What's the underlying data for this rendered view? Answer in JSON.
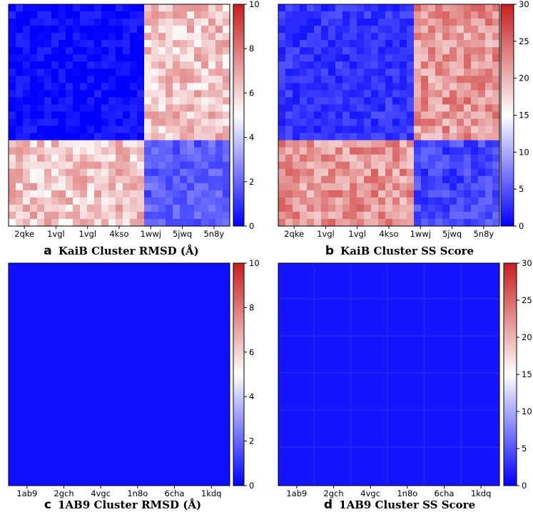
{
  "chart_data": [
    {
      "panel": "a",
      "type": "heatmap",
      "title": "KaiB Cluster RMSD (Å)",
      "x_tick_labels": [
        "2qke",
        "1vgl",
        "1vgl",
        "4kso",
        "1wwj",
        "5jwq",
        "5n8y"
      ],
      "colorbar": {
        "min": 0,
        "max": 10,
        "ticks": [
          0,
          2,
          4,
          6,
          8,
          10
        ],
        "colormap": "bwr"
      },
      "matrix_size": 31,
      "block_split_index": 19,
      "within_group_1_value": 0.2,
      "within_group_2_value": 1.8,
      "between_group_value": 6.3
    },
    {
      "panel": "b",
      "type": "heatmap",
      "title": "KaiB Cluster SS Score",
      "x_tick_labels": [
        "2qke",
        "1vgl",
        "1vgl",
        "4kso",
        "1wwj",
        "5jwq",
        "5n8y"
      ],
      "colorbar": {
        "min": 0,
        "max": 30,
        "ticks": [
          0,
          5,
          10,
          15,
          20,
          25,
          30
        ],
        "colormap": "bwr"
      },
      "matrix_size": 31,
      "block_split_index": 19,
      "within_group_1_value": 3,
      "within_group_2_value": 4,
      "between_group_value": 22
    },
    {
      "panel": "c",
      "type": "heatmap",
      "title": "1AB9 Cluster RMSD (Å)",
      "x_tick_labels": [
        "1ab9",
        "2gch",
        "4vgc",
        "1n8o",
        "6cha",
        "1kdq"
      ],
      "colorbar": {
        "min": 0,
        "max": 10,
        "ticks": [
          0,
          2,
          4,
          6,
          8,
          10
        ],
        "colormap": "bwr"
      },
      "uniform_value": 0.3
    },
    {
      "panel": "d",
      "type": "heatmap",
      "title": "1AB9 Cluster SS Score",
      "x_tick_labels": [
        "1ab9",
        "2gch",
        "4vgc",
        "1n8o",
        "6cha",
        "1kdq"
      ],
      "colorbar": {
        "min": 0,
        "max": 30,
        "ticks": [
          0,
          5,
          10,
          15,
          20,
          25,
          30
        ],
        "colormap": "bwr"
      },
      "uniform_value": 1.2
    }
  ],
  "captions": {
    "a": {
      "letter": "a",
      "text": "KaiB Cluster RMSD (Å)"
    },
    "b": {
      "letter": "b",
      "text": "KaiB Cluster SS Score"
    },
    "c": {
      "letter": "c",
      "text": "1AB9 Cluster RMSD (Å)"
    },
    "d": {
      "letter": "d",
      "text": "1AB9 Cluster SS Score"
    }
  },
  "colors": {
    "low": "#0000ff",
    "mid": "#ffffff",
    "high": "#c81e1e",
    "frame": "#000000"
  }
}
